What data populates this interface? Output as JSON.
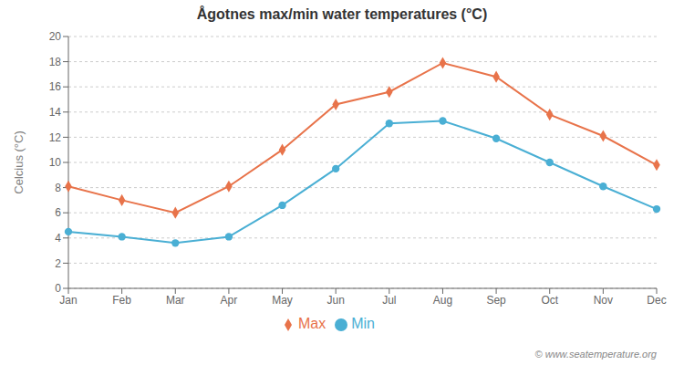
{
  "chart_data": {
    "type": "line",
    "title": "Ågotnes max/min water temperatures (°C)",
    "ylabel": "Celcius (°C)",
    "categories": [
      "Jan",
      "Feb",
      "Mar",
      "Apr",
      "May",
      "Jun",
      "Jul",
      "Aug",
      "Sep",
      "Oct",
      "Nov",
      "Dec"
    ],
    "series": [
      {
        "name": "Max",
        "color": "#e8734a",
        "marker": "diamond",
        "values": [
          8.1,
          7.0,
          6.0,
          8.1,
          11.0,
          14.6,
          15.6,
          17.9,
          16.8,
          13.8,
          12.1,
          9.8
        ]
      },
      {
        "name": "Min",
        "color": "#4aafd4",
        "marker": "circle",
        "values": [
          4.5,
          4.1,
          3.6,
          4.1,
          6.6,
          9.5,
          13.1,
          13.3,
          11.9,
          10.0,
          8.1,
          6.3
        ]
      }
    ],
    "ylim": [
      0,
      20
    ],
    "yticks": [
      0,
      2,
      4,
      6,
      8,
      10,
      12,
      14,
      16,
      18,
      20
    ],
    "grid": true,
    "legend": "bottom",
    "annotations": [
      "© www.seatemperature.org"
    ]
  }
}
